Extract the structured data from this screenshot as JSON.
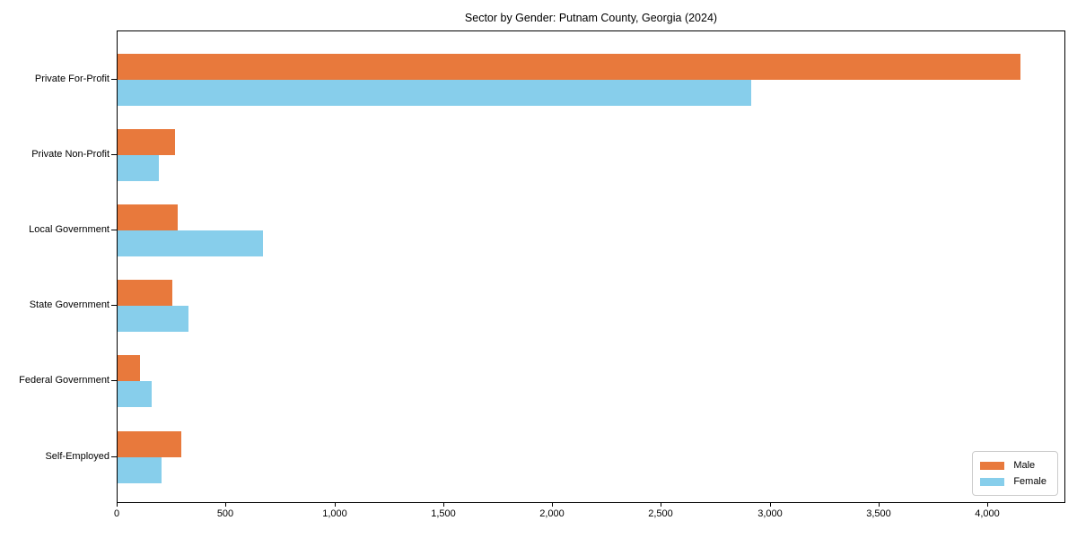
{
  "chart_data": {
    "type": "bar",
    "orientation": "horizontal",
    "title": "Sector by Gender: Putnam County, Georgia (2024)",
    "categories": [
      "Private For-Profit",
      "Private Non-Profit",
      "Local Government",
      "State Government",
      "Federal Government",
      "Self-Employed"
    ],
    "series": [
      {
        "name": "Male",
        "color": "#e8793c",
        "values": [
          4150,
          264,
          278,
          253,
          103,
          291
        ]
      },
      {
        "name": "Female",
        "color": "#87ceeb",
        "values": [
          2913,
          191,
          670,
          326,
          158,
          202
        ]
      }
    ],
    "xlabel": "",
    "ylabel": "",
    "xlim": [
      0,
      4350
    ],
    "xticks": [
      0,
      500,
      1000,
      1500,
      2000,
      2500,
      3000,
      3500,
      4000
    ],
    "xtick_labels": [
      "0",
      "500",
      "1,000",
      "1,500",
      "2,000",
      "2,500",
      "3,000",
      "3,500",
      "4,000"
    ],
    "grid": false,
    "legend": {
      "position": "lower-right",
      "entries": [
        {
          "label": "Male",
          "color": "#e8793c"
        },
        {
          "label": "Female",
          "color": "#87ceeb"
        }
      ]
    }
  },
  "colors": {
    "background": "#ffffff",
    "axis": "#000000",
    "legend_border": "#cccccc",
    "male": "#e8793c",
    "female": "#87ceeb"
  }
}
